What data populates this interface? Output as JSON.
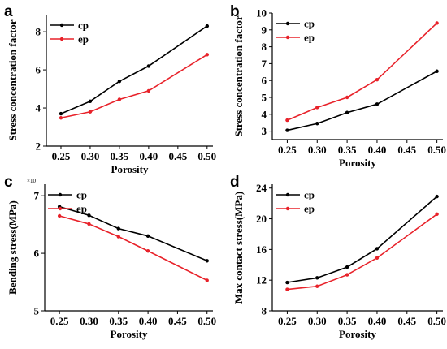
{
  "colors": {
    "cp": "#000000",
    "ep": "#e8222a",
    "axis": "#000000"
  },
  "chart_data": [
    {
      "panel_label": "a",
      "type": "line",
      "x": [
        0.25,
        0.3,
        0.35,
        0.4,
        0.5
      ],
      "xticks": [
        "0.25",
        "0.30",
        "0.35",
        "0.40",
        "0.45",
        "0.50"
      ],
      "xlim": [
        0.225,
        0.51
      ],
      "yticks": [
        "2",
        "4",
        "6",
        "8"
      ],
      "ylim": [
        2,
        8.9
      ],
      "xlabel": "Porosity",
      "ylabel": "Stress concentration factor",
      "legend_position": "top-left",
      "series": [
        {
          "name": "cp",
          "color": "#000000",
          "values": [
            3.7,
            4.35,
            5.4,
            6.2,
            8.3
          ]
        },
        {
          "name": "ep",
          "color": "#e8222a",
          "values": [
            3.48,
            3.8,
            4.45,
            4.9,
            6.8
          ]
        }
      ]
    },
    {
      "panel_label": "b",
      "type": "line",
      "x": [
        0.25,
        0.3,
        0.35,
        0.4,
        0.5
      ],
      "xticks": [
        "0.25",
        "0.30",
        "0.35",
        "0.40",
        "0.45",
        "0.50"
      ],
      "xlim": [
        0.225,
        0.51
      ],
      "yticks": [
        "3",
        "4",
        "5",
        "6",
        "7",
        "8",
        "9",
        "10"
      ],
      "ylim": [
        2.5,
        10
      ],
      "xlabel": "Porosity",
      "ylabel": "Stress concentration factor",
      "legend_position": "top-left",
      "series": [
        {
          "name": "cp",
          "color": "#000000",
          "values": [
            3.05,
            3.45,
            4.1,
            4.6,
            6.55
          ]
        },
        {
          "name": "ep",
          "color": "#e8222a",
          "values": [
            3.65,
            4.4,
            5.0,
            6.05,
            9.4
          ]
        }
      ]
    },
    {
      "panel_label": "c",
      "type": "line",
      "x": [
        0.25,
        0.3,
        0.35,
        0.4,
        0.5
      ],
      "xticks": [
        "0.25",
        "0.30",
        "0.35",
        "0.40",
        "0.45",
        "0.50"
      ],
      "xlim": [
        0.225,
        0.51
      ],
      "yticks": [
        "5",
        "6",
        "7"
      ],
      "ylim": [
        5,
        7.2
      ],
      "y_multiplier": "×10",
      "xlabel": "Porosity",
      "ylabel": "Bending stress(MPa)",
      "legend_position": "top-left",
      "series": [
        {
          "name": "cp",
          "color": "#000000",
          "values": [
            6.81,
            6.66,
            6.43,
            6.3,
            5.87
          ]
        },
        {
          "name": "ep",
          "color": "#e8222a",
          "values": [
            6.65,
            6.51,
            6.29,
            6.04,
            5.53
          ]
        }
      ]
    },
    {
      "panel_label": "d",
      "type": "line",
      "x": [
        0.25,
        0.3,
        0.35,
        0.4,
        0.5
      ],
      "xticks": [
        "0.25",
        "0.30",
        "0.35",
        "0.40",
        "0.45",
        "0.50"
      ],
      "xlim": [
        0.225,
        0.51
      ],
      "yticks": [
        "8",
        "12",
        "16",
        "20",
        "24"
      ],
      "ylim": [
        8,
        24.5
      ],
      "xlabel": "Porosity",
      "ylabel": "Max contact stress(MPa)",
      "legend_position": "top-left",
      "series": [
        {
          "name": "cp",
          "color": "#000000",
          "values": [
            11.7,
            12.3,
            13.7,
            16.1,
            22.9
          ]
        },
        {
          "name": "ep",
          "color": "#e8222a",
          "values": [
            10.8,
            11.2,
            12.7,
            14.9,
            20.6
          ]
        }
      ]
    }
  ]
}
